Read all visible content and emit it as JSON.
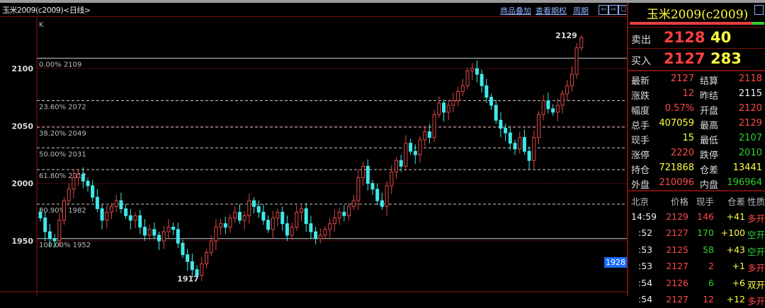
{
  "window": {
    "title": "玉米2009(c2009)<日线>"
  },
  "toolbar": {
    "links": [
      "商品叠加",
      "查看期权",
      "周期"
    ],
    "buttons": [
      "⇦",
      "⇨",
      "☐"
    ]
  },
  "chart_data": {
    "type": "candlestick",
    "indicator_label": "K",
    "y_ticks": [
      2100,
      2050,
      2000,
      1950
    ],
    "ylim": [
      1905,
      2135
    ],
    "high_marker": "2129",
    "low_marker": "1917",
    "crosshair_value": "1928",
    "fibonacci": [
      {
        "label": "0.00% 2109",
        "value": 2109
      },
      {
        "label": "23.60% 2072",
        "value": 2072
      },
      {
        "label": "38.20% 2049",
        "value": 2049
      },
      {
        "label": "50.00% 2031",
        "value": 2031
      },
      {
        "label": "61.80% 2012",
        "value": 2012
      },
      {
        "label": "80.90% 1982",
        "value": 1982
      },
      {
        "label": "100.00% 1952",
        "value": 1952
      }
    ],
    "first_open": 1975,
    "closes": [
      1970,
      1958,
      1952,
      1950,
      1968,
      1985,
      1995,
      2005,
      2008,
      2002,
      1998,
      1988,
      1978,
      1968,
      1975,
      1980,
      1985,
      1978,
      1972,
      1968,
      1972,
      1962,
      1955,
      1960,
      1955,
      1950,
      1958,
      1962,
      1960,
      1948,
      1938,
      1932,
      1925,
      1920,
      1930,
      1940,
      1950,
      1962,
      1965,
      1962,
      1970,
      1975,
      1968,
      1972,
      1985,
      1980,
      1975,
      1968,
      1960,
      1970,
      1975,
      1965,
      1955,
      1962,
      1975,
      1978,
      1965,
      1958,
      1952,
      1955,
      1960,
      1965,
      1970,
      1975,
      1972,
      1980,
      1985,
      2005,
      2015,
      2000,
      1995,
      1985,
      1980,
      1998,
      2010,
      2020,
      2015,
      2035,
      2028,
      2025,
      2038,
      2045,
      2040,
      2060,
      2070,
      2062,
      2068,
      2072,
      2080,
      2085,
      2098,
      2100,
      2095,
      2085,
      2075,
      2068,
      2055,
      2048,
      2044,
      2035,
      2030,
      2040,
      2028,
      2020,
      2040,
      2060,
      2072,
      2065,
      2062,
      2068,
      2078,
      2085,
      2095,
      2118,
      2127
    ],
    "colors": {
      "up": "#e04848",
      "down": "#40e8e8",
      "grid": "#8a1818",
      "fib": "#cccccc"
    }
  },
  "panel": {
    "title": "玉米2009(c2009)",
    "buy_ratio": 0.91,
    "ask": {
      "label": "卖出",
      "price": "2128",
      "volume": "40"
    },
    "bid": {
      "label": "买入",
      "price": "2127",
      "volume": "283"
    },
    "stats": [
      {
        "k1": "最新",
        "v1": "2127",
        "c1": "red",
        "k2": "结算",
        "v2": "2118",
        "c2": "red"
      },
      {
        "k1": "涨跌",
        "v1": "12",
        "c1": "red",
        "k2": "昨结",
        "v2": "2115",
        "c2": "wht"
      },
      {
        "k1": "幅度",
        "v1": "0.57%",
        "c1": "red",
        "k2": "开盘",
        "v2": "2120",
        "c2": "red"
      },
      {
        "k1": "总手",
        "v1": "407059",
        "c1": "yel",
        "k2": "最高",
        "v2": "2129",
        "c2": "red"
      },
      {
        "k1": "现手",
        "v1": "15",
        "c1": "yel",
        "k2": "最低",
        "v2": "2107",
        "c2": "grn"
      },
      {
        "k1": "涨停",
        "v1": "2220",
        "c1": "red",
        "k2": "跌停",
        "v2": "2010",
        "c2": "grn"
      },
      {
        "k1": "持仓",
        "v1": "721868",
        "c1": "yel",
        "k2": "仓差",
        "v2": "13441",
        "c2": "yel"
      },
      {
        "k1": "外盘",
        "v1": "210096",
        "c1": "red",
        "k2": "内盘",
        "v2": "196964",
        "c2": "grn"
      }
    ],
    "tick_headers": [
      "北京",
      "价格",
      "现手",
      "仓差",
      "性质"
    ],
    "ticks": [
      {
        "time": "14:59",
        "price": "2129",
        "vol": "146",
        "vc": "red",
        "oi": "+41",
        "nature": "多开",
        "nc": "red"
      },
      {
        "time": ":52",
        "price": "2127",
        "vol": "170",
        "vc": "grn",
        "oi": "+100",
        "nature": "空开",
        "nc": "grn"
      },
      {
        "time": ":53",
        "price": "2125",
        "vol": "58",
        "vc": "grn",
        "oi": "+43",
        "nature": "空开",
        "nc": "grn"
      },
      {
        "time": ":53",
        "price": "2127",
        "vol": "2",
        "vc": "red",
        "oi": "+1",
        "nature": "多开",
        "nc": "red"
      },
      {
        "time": ":54",
        "price": "2126",
        "vol": "6",
        "vc": "grn",
        "oi": "+6",
        "nature": "双开",
        "nc": "yel"
      },
      {
        "time": ":54",
        "price": "2127",
        "vol": "12",
        "vc": "red",
        "oi": "+12",
        "nature": "多开",
        "nc": "red"
      }
    ]
  }
}
